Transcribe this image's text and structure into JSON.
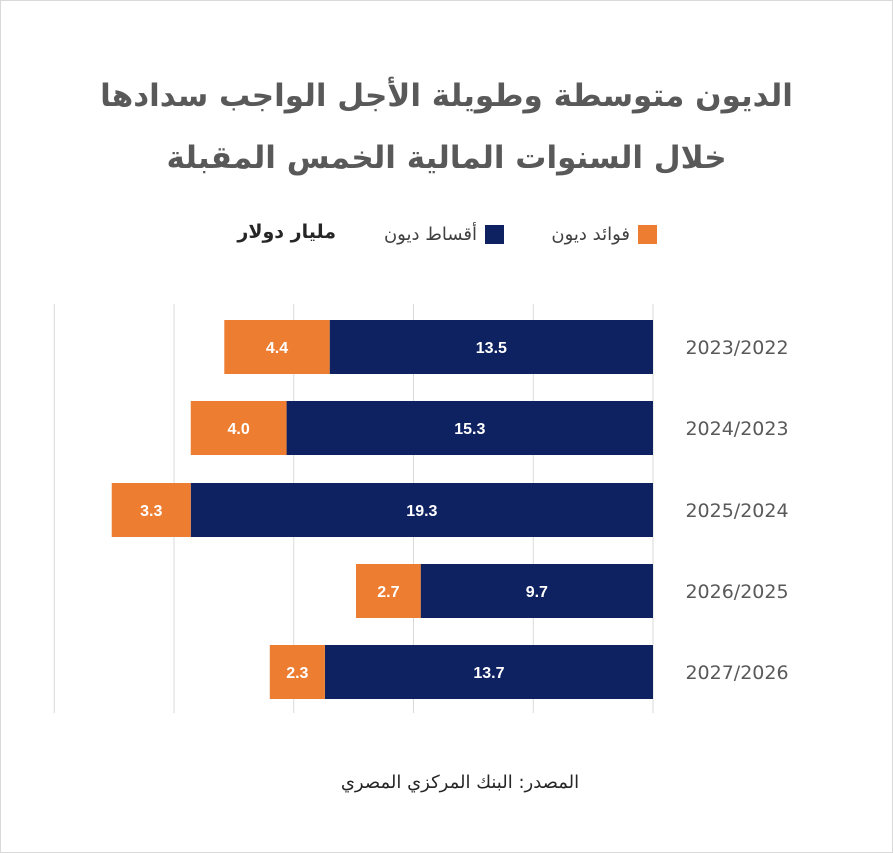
{
  "chart_data": {
    "type": "bar",
    "orientation": "horizontal",
    "stacked": true,
    "title_line1": "الديون متوسطة وطويلة الأجل الواجب سدادها",
    "title_line2": "خلال السنوات المالية الخمس المقبلة",
    "unit": "مليار دولار",
    "categories": [
      "2023/2022",
      "2024/2023",
      "2025/2024",
      "2026/2025",
      "2027/2026"
    ],
    "series": [
      {
        "name": "أقساط ديون",
        "color": "#0e2160",
        "values": [
          13.5,
          15.3,
          19.3,
          9.7,
          13.7
        ]
      },
      {
        "name": "فوائد ديون",
        "color": "#ed7d31",
        "values": [
          4.4,
          4.0,
          3.3,
          2.7,
          2.3
        ]
      }
    ],
    "xlim": [
      0,
      25
    ],
    "grid": true,
    "legend_position": "top",
    "source": "المصدر: البنك المركزي المصري"
  }
}
